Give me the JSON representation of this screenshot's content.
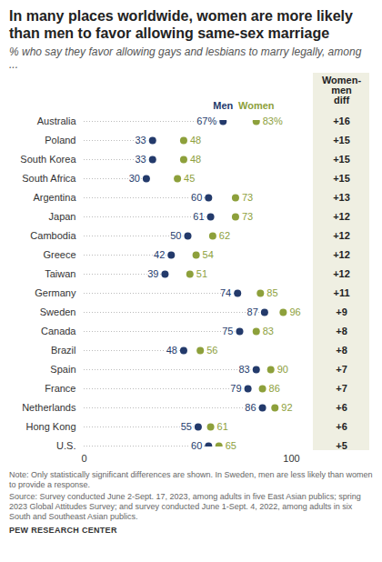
{
  "chart_data": {
    "type": "dot",
    "title": "In many places worldwide, women are more likely than men to favor allowing same-sex marriage",
    "subtitle": "% who say they favor allowing gays and lesbians to marry legally, among ...",
    "categories": [
      "Australia",
      "Poland",
      "South Korea",
      "South Africa",
      "Argentina",
      "Japan",
      "Cambodia",
      "Greece",
      "Taiwan",
      "Germany",
      "Sweden",
      "Canada",
      "Brazil",
      "Spain",
      "France",
      "Netherlands",
      "Hong Kong",
      "U.S."
    ],
    "series": [
      {
        "name": "Men",
        "color": "#233a6b",
        "values": [
          67,
          33,
          33,
          30,
          60,
          61,
          50,
          42,
          39,
          74,
          87,
          75,
          48,
          83,
          79,
          86,
          55,
          60
        ],
        "value_labels": [
          "67%",
          "33",
          "33",
          "30",
          "60",
          "61",
          "50",
          "42",
          "39",
          "74",
          "87",
          "75",
          "48",
          "83",
          "79",
          "86",
          "55",
          "60"
        ]
      },
      {
        "name": "Women",
        "color": "#8da03b",
        "values": [
          83,
          48,
          48,
          45,
          73,
          73,
          62,
          54,
          51,
          85,
          96,
          83,
          56,
          90,
          86,
          92,
          61,
          65
        ],
        "value_labels": [
          "83%",
          "48",
          "48",
          "45",
          "73",
          "73",
          "62",
          "54",
          "51",
          "85",
          "96",
          "83",
          "56",
          "90",
          "86",
          "92",
          "61",
          "65"
        ]
      }
    ],
    "differences": {
      "title": "Women-\nmen\ndiff",
      "values": [
        16,
        15,
        15,
        15,
        13,
        12,
        12,
        12,
        12,
        11,
        9,
        8,
        8,
        7,
        7,
        6,
        6,
        5
      ],
      "value_labels": [
        "+16",
        "+15",
        "+15",
        "+15",
        "+13",
        "+12",
        "+12",
        "+12",
        "+12",
        "+11",
        "+9",
        "+8",
        "+8",
        "+7",
        "+7",
        "+6",
        "+6",
        "+5"
      ]
    },
    "xlim": [
      0,
      100
    ],
    "xticks": [
      0,
      100
    ],
    "orientation": "horizontal",
    "data_labels": true,
    "legend": "top",
    "note": "Note: Only statistically significant differences are shown. In Sweden, men are less likely than women to provide a response.",
    "source": "Source: Survey conducted June 2-Sept. 17, 2023, among adults in five East Asian publics; spring 2023 Global Attitudes Survey; and survey conducted June 1-Sept. 4, 2022, among adults in six South and Southeast Asian publics.",
    "credit": "PEW RESEARCH CENTER"
  }
}
